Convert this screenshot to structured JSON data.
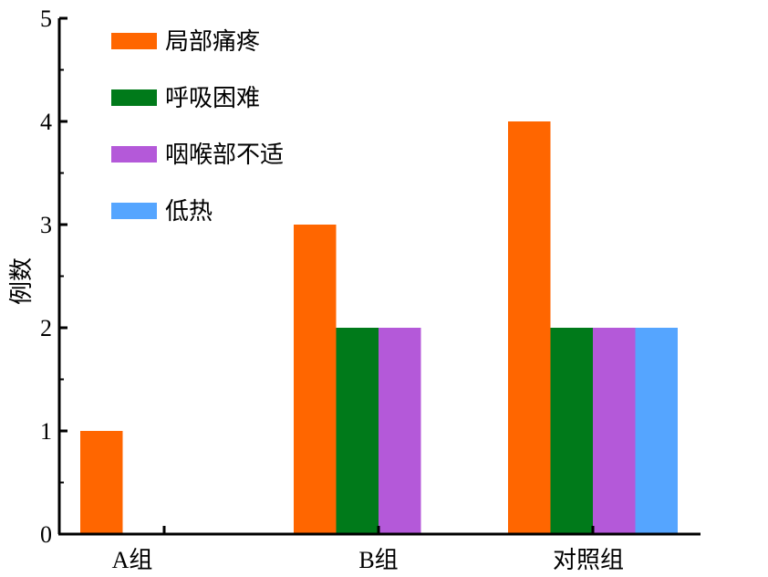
{
  "chart_data": {
    "type": "bar",
    "categories": [
      "A组",
      "B组",
      "对照组"
    ],
    "series": [
      {
        "name": "局部痛疼",
        "values": [
          1,
          3,
          4
        ],
        "color": "#ff6600"
      },
      {
        "name": "呼吸困难",
        "values": [
          0,
          2,
          2
        ],
        "color": "#007a1a"
      },
      {
        "name": "咽喉部不适",
        "values": [
          0,
          2,
          2
        ],
        "color": "#b459d9"
      },
      {
        "name": "低热",
        "values": [
          0,
          0,
          2
        ],
        "color": "#55a5ff"
      }
    ],
    "title": "",
    "xlabel": "",
    "ylabel": "例数",
    "ylim": [
      0,
      5
    ],
    "yticks": [
      "0",
      "1",
      "2",
      "3",
      "4",
      "5"
    ],
    "grid": false,
    "legend_position": "top-left"
  }
}
